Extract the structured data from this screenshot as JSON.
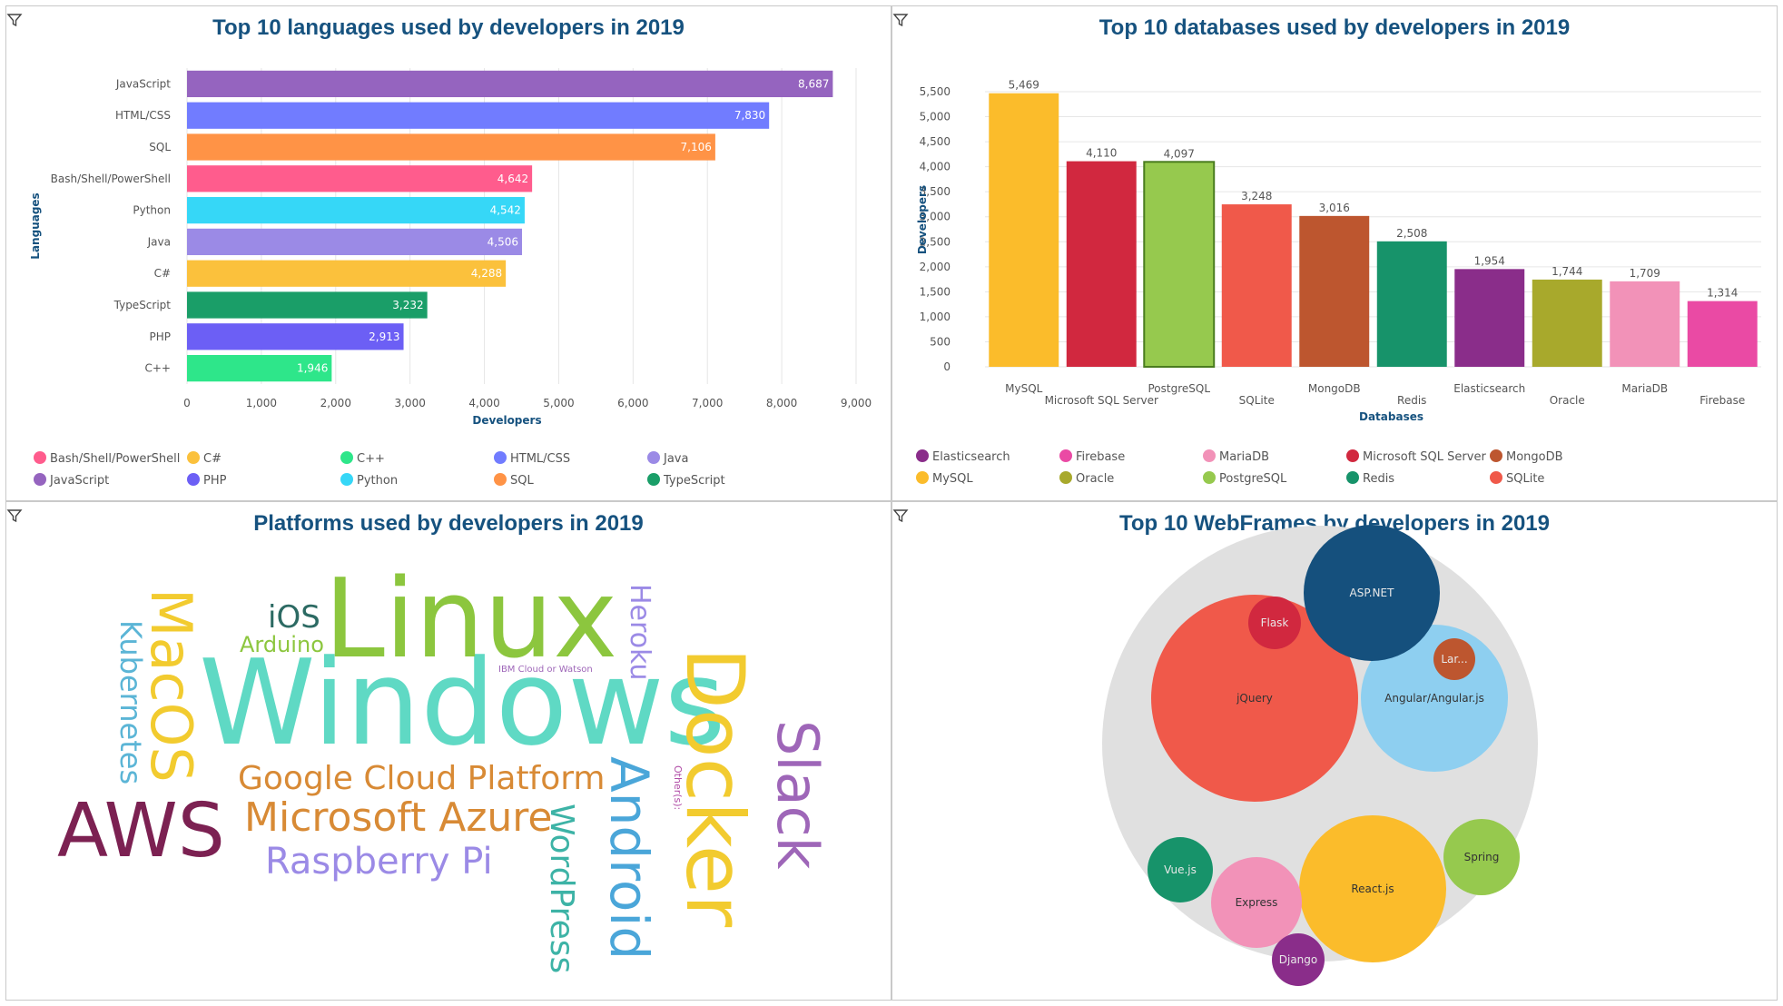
{
  "charts": {
    "languages": {
      "title": "Top 10 languages used by developers in 2019",
      "chart_data": {
        "type": "bar",
        "orientation": "horizontal",
        "title": "Top 10 languages used by developers in 2019",
        "xlabel": "Developers",
        "ylabel": "Languages",
        "xlim": [
          0,
          9000
        ],
        "xticks": [
          0,
          1000,
          2000,
          3000,
          4000,
          5000,
          6000,
          7000,
          8000,
          9000
        ],
        "xtick_labels": [
          "0",
          "1,000",
          "2,000",
          "3,000",
          "4,000",
          "5,000",
          "6,000",
          "7,000",
          "8,000",
          "9,000"
        ],
        "grid": true,
        "legend_position": "bottom",
        "categories": [
          "JavaScript",
          "HTML/CSS",
          "SQL",
          "Bash/Shell/PowerShell",
          "Python",
          "Java",
          "C#",
          "TypeScript",
          "PHP",
          "C++"
        ],
        "values": [
          8687,
          7830,
          7106,
          4642,
          4542,
          4506,
          4288,
          3232,
          2913,
          1946
        ],
        "value_labels": [
          "8,687",
          "7,830",
          "7,106",
          "4,642",
          "4,542",
          "4,506",
          "4,288",
          "3,232",
          "2,913",
          "1,946"
        ],
        "colors": [
          "#9564bf",
          "#717cff",
          "#ff9346",
          "#ff5c8d",
          "#36d7f7",
          "#9b8ae6",
          "#fbc13c",
          "#1a9e68",
          "#6c5ff5",
          "#2ee68a"
        ],
        "legend": [
          {
            "name": "Bash/Shell/PowerShell",
            "color": "#ff5c8d"
          },
          {
            "name": "C#",
            "color": "#fbc13c"
          },
          {
            "name": "C++",
            "color": "#2ee68a"
          },
          {
            "name": "HTML/CSS",
            "color": "#717cff"
          },
          {
            "name": "Java",
            "color": "#9b8ae6"
          },
          {
            "name": "JavaScript",
            "color": "#9564bf"
          },
          {
            "name": "PHP",
            "color": "#6c5ff5"
          },
          {
            "name": "Python",
            "color": "#36d7f7"
          },
          {
            "name": "SQL",
            "color": "#ff9346"
          },
          {
            "name": "TypeScript",
            "color": "#1a9e68"
          }
        ]
      }
    },
    "databases": {
      "title": "Top 10 databases used by developers in 2019",
      "chart_data": {
        "type": "bar",
        "orientation": "vertical",
        "title": "Top 10 databases used by developers in 2019",
        "xlabel": "Databases",
        "ylabel": "Developers",
        "ylim": [
          0,
          5500
        ],
        "yticks": [
          0,
          500,
          1000,
          1500,
          2000,
          2500,
          3000,
          3500,
          4000,
          4500,
          5000,
          5500
        ],
        "ytick_labels": [
          "0",
          "500",
          "1,000",
          "1,500",
          "2,000",
          "2,500",
          "3,000",
          "3,500",
          "4,000",
          "4,500",
          "5,000",
          "5,500"
        ],
        "grid": true,
        "legend_position": "bottom",
        "categories": [
          "MySQL",
          "Microsoft SQL Server",
          "PostgreSQL",
          "SQLite",
          "MongoDB",
          "Redis",
          "Elasticsearch",
          "Oracle",
          "MariaDB",
          "Firebase"
        ],
        "values": [
          5469,
          4110,
          4097,
          3248,
          3016,
          2508,
          1954,
          1744,
          1709,
          1314
        ],
        "value_labels": [
          "5,469",
          "4,110",
          "4,097",
          "3,248",
          "3,016",
          "2,508",
          "1,954",
          "1,744",
          "1,709",
          "1,314"
        ],
        "colors": [
          "#fbbc2b",
          "#d1283f",
          "#96c94e",
          "#f0594a",
          "#bd562f",
          "#17936a",
          "#8a2d8a",
          "#a8a92c",
          "#f292b8",
          "#ea4aa4"
        ],
        "legend": [
          {
            "name": "Elasticsearch",
            "color": "#8a2d8a"
          },
          {
            "name": "Firebase",
            "color": "#ea4aa4"
          },
          {
            "name": "MariaDB",
            "color": "#f292b8"
          },
          {
            "name": "Microsoft SQL Server",
            "color": "#d1283f"
          },
          {
            "name": "MongoDB",
            "color": "#bd562f"
          },
          {
            "name": "MySQL",
            "color": "#fbbc2b"
          },
          {
            "name": "Oracle",
            "color": "#a8a92c"
          },
          {
            "name": "PostgreSQL",
            "color": "#96c94e"
          },
          {
            "name": "Redis",
            "color": "#17936a"
          },
          {
            "name": "SQLite",
            "color": "#f0594a"
          }
        ]
      }
    },
    "platforms": {
      "title": "Platforms used by developers in 2019",
      "chart_data": {
        "type": "wordcloud",
        "title": "Platforms used by developers in 2019",
        "words": [
          {
            "text": "Windows",
            "weight": 100,
            "color": "#5fd9c4"
          },
          {
            "text": "Linux",
            "weight": 92,
            "color": "#8cc63e"
          },
          {
            "text": "Docker",
            "weight": 62,
            "color": "#f2cb2f"
          },
          {
            "text": "AWS",
            "weight": 57,
            "color": "#7c2152"
          },
          {
            "text": "Android",
            "weight": 48,
            "color": "#4aa6d9"
          },
          {
            "text": "MacOS",
            "weight": 44,
            "color": "#f2cb2f"
          },
          {
            "text": "Slack",
            "weight": 44,
            "color": "#9e66b8"
          },
          {
            "text": "Microsoft Azure",
            "weight": 34,
            "color": "#d88a35"
          },
          {
            "text": "Google Cloud Platform",
            "weight": 28,
            "color": "#d88a35"
          },
          {
            "text": "Raspberry Pi",
            "weight": 28,
            "color": "#9b8ae6"
          },
          {
            "text": "WordPress",
            "weight": 26,
            "color": "#3db3a6"
          },
          {
            "text": "Kubernetes",
            "weight": 24,
            "color": "#5bb5d6"
          },
          {
            "text": "Heroku",
            "weight": 22,
            "color": "#9b8ae6"
          },
          {
            "text": "iOS",
            "weight": 24,
            "color": "#2c6a63"
          },
          {
            "text": "Arduino",
            "weight": 18,
            "color": "#8cc63e"
          },
          {
            "text": "Other(s):",
            "weight": 8,
            "color": "#b04ba6"
          },
          {
            "text": "IBM Cloud or Watson",
            "weight": 6,
            "color": "#9e66b8"
          }
        ]
      }
    },
    "webframes": {
      "title": "Top 10 WebFrames by developers in 2019",
      "chart_data": {
        "type": "bubble",
        "title": "Top 10 WebFrames by developers in 2019",
        "bubbles": [
          {
            "name": "jQuery",
            "label": "jQuery",
            "value": 100,
            "color": "#f0594a"
          },
          {
            "name": "Angular/Angular.js",
            "label": "Angular/Angular.js",
            "value": 52,
            "color": "#8ecff0"
          },
          {
            "name": "React.js",
            "label": "React.js",
            "value": 51,
            "color": "#fbbc2b"
          },
          {
            "name": "ASP.NET",
            "label": "ASP.NET",
            "value": 43,
            "color": "#15507d"
          },
          {
            "name": "Express",
            "label": "Express",
            "value": 19,
            "color": "#f292b8"
          },
          {
            "name": "Spring",
            "label": "Spring",
            "value": 13,
            "color": "#96c94e"
          },
          {
            "name": "Vue.js",
            "label": "Vue.js",
            "value": 10,
            "color": "#17936a"
          },
          {
            "name": "Flask",
            "label": "Flask",
            "value": 7,
            "color": "#d1283f"
          },
          {
            "name": "Django",
            "label": "Django",
            "value": 7,
            "color": "#8a2d8a"
          },
          {
            "name": "Laravel",
            "label": "Lar...",
            "value": 4,
            "color": "#bd562f"
          }
        ]
      }
    }
  }
}
